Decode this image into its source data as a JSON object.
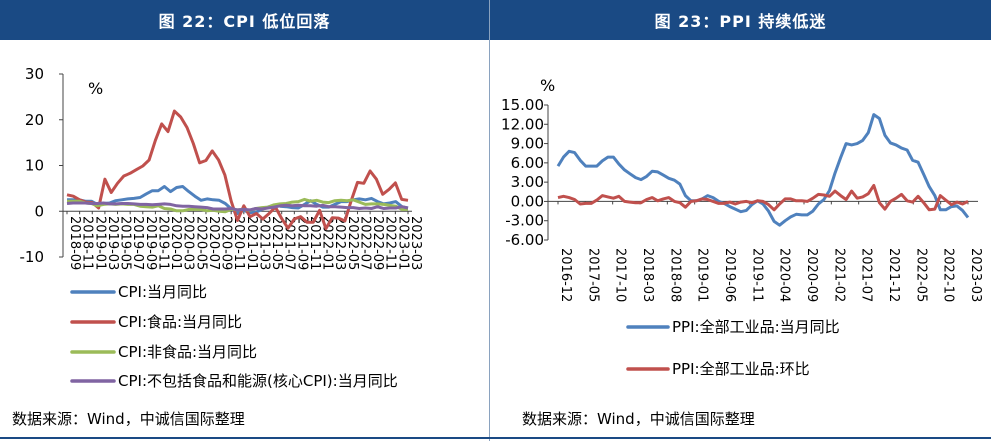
{
  "panels": {
    "left": {
      "title": "图 22：CPI 低位回落",
      "source": "数据来源：Wind，中诚信国际整理"
    },
    "right": {
      "title": "图 23：PPI 持续低迷",
      "source": "数据来源：Wind，中诚信国际整理"
    }
  },
  "colors": {
    "blue": "#4f81bd",
    "red": "#c0504d",
    "green": "#9bbb59",
    "purple": "#8064a2",
    "header": "#1a4a84"
  },
  "chart_data": [
    {
      "type": "line",
      "unit": "%",
      "ylim": [
        -10,
        30
      ],
      "yticks": [
        "30",
        "20",
        "10",
        "0",
        "-10"
      ],
      "x_tick_labels": [
        "2018-09",
        "2018-11",
        "2019-01",
        "2019-03",
        "2019-05",
        "2019-07",
        "2019-09",
        "2019-11",
        "2020-01",
        "2020-03",
        "2020-05",
        "2020-07",
        "2020-09",
        "2020-11",
        "2021-01",
        "2021-03",
        "2021-05",
        "2021-07",
        "2021-09",
        "2021-11",
        "2022-01",
        "2022-03",
        "2022-05",
        "2022-07",
        "2022-09",
        "2022-11",
        "2023-01",
        "2023-03"
      ],
      "legend_position": "bottom",
      "series": [
        {
          "name": "CPI:当月同比",
          "color": "#4f81bd",
          "values": [
            2.5,
            2.5,
            2.5,
            2.2,
            2.2,
            1.5,
            1.7,
            1.8,
            2.3,
            2.5,
            2.7,
            2.8,
            3.0,
            3.8,
            4.5,
            4.5,
            5.4,
            4.3,
            5.2,
            5.4,
            4.3,
            3.3,
            2.4,
            2.7,
            2.5,
            2.4,
            1.7,
            0.5,
            -0.5,
            0.2,
            -0.3,
            -0.2,
            0.4,
            0.9,
            1.3,
            1.1,
            1.0,
            0.8,
            0.7,
            1.5,
            2.3,
            1.5,
            0.9,
            0.9,
            1.5,
            2.1,
            2.1,
            2.5,
            2.7,
            2.5,
            2.8,
            2.1,
            1.6,
            1.8,
            2.1,
            1.0,
            0.7
          ]
        },
        {
          "name": "CPI:食品:当月同比",
          "color": "#c0504d",
          "values": [
            3.6,
            3.3,
            2.5,
            2.0,
            1.9,
            0.7,
            7.0,
            4.1,
            6.1,
            7.7,
            8.3,
            9.1,
            9.9,
            11.2,
            15.5,
            19.1,
            17.4,
            21.9,
            20.6,
            18.3,
            14.8,
            10.6,
            11.1,
            13.2,
            11.2,
            7.9,
            2.2,
            -2.0,
            1.2,
            -1.2,
            -0.5,
            -1.7,
            -0.5,
            0.9,
            -1.6,
            -3.7,
            -1.7,
            -1.2,
            -2.4,
            -2.4,
            0.2,
            -3.8,
            -1.4,
            -1.5,
            -2.1,
            2.3,
            6.3,
            6.1,
            8.8,
            7.0,
            3.7,
            4.8,
            6.2,
            2.6,
            2.4
          ]
        },
        {
          "name": "CPI:非食品:当月同比",
          "color": "#9bbb59",
          "values": [
            2.2,
            2.2,
            2.2,
            1.8,
            1.7,
            1.2,
            1.5,
            1.6,
            1.5,
            1.6,
            1.5,
            1.5,
            1.1,
            1.0,
            0.9,
            1.2,
            0.6,
            0.5,
            0.1,
            0.1,
            0.4,
            0.4,
            0.4,
            0.1,
            0.2,
            0.0,
            -0.1,
            0.4,
            0.3,
            0.4,
            0.2,
            0.6,
            0.8,
            0.9,
            1.4,
            1.6,
            1.7,
            2.0,
            2.1,
            2.6,
            2.2,
            2.4,
            2.0,
            1.9,
            2.3,
            2.4,
            2.3,
            2.5,
            2.0,
            1.5,
            1.6,
            1.6,
            1.5,
            1.3,
            1.1,
            0.4,
            0.4
          ]
        },
        {
          "name": "CPI:不包括食品和能源(核心CPI):当月同比",
          "color": "#8064a2",
          "values": [
            1.7,
            1.8,
            1.8,
            1.8,
            1.7,
            1.7,
            1.8,
            1.6,
            1.6,
            1.7,
            1.7,
            1.6,
            1.5,
            1.5,
            1.4,
            1.5,
            1.6,
            1.5,
            1.2,
            1.1,
            1.1,
            1.0,
            0.9,
            0.8,
            0.5,
            0.5,
            0.5,
            0.6,
            0.3,
            0.4,
            0.3,
            0.6,
            0.5,
            0.7,
            0.9,
            1.2,
            1.3,
            1.2,
            1.3,
            1.2,
            1.2,
            1.1,
            1.3,
            1.0,
            1.0,
            0.9,
            0.8,
            0.8,
            0.6,
            0.7,
            0.6,
            1.0,
            0.6,
            0.7,
            0.7,
            1.0,
            0.7
          ]
        }
      ]
    },
    {
      "type": "line",
      "unit": "%",
      "ylim": [
        -6,
        15
      ],
      "yticks": [
        "15.00",
        "12.00",
        "9.00",
        "6.00",
        "3.00",
        "0.00",
        "-3.00",
        "-6.00"
      ],
      "x_tick_labels": [
        "2016-12",
        "2017-05",
        "2017-10",
        "2018-03",
        "2018-08",
        "2019-01",
        "2019-06",
        "2019-11",
        "2020-04",
        "2020-09",
        "2021-02",
        "2021-07",
        "2021-12",
        "2022-05",
        "2022-10",
        "2023-03"
      ],
      "legend_position": "bottom",
      "series": [
        {
          "name": "PPI:全部工业品:当月同比",
          "color": "#4f81bd",
          "values": [
            5.5,
            6.9,
            7.8,
            7.6,
            6.4,
            5.5,
            5.5,
            5.5,
            6.3,
            6.9,
            6.9,
            5.8,
            4.9,
            4.3,
            3.7,
            3.4,
            3.9,
            4.7,
            4.6,
            4.1,
            3.6,
            3.3,
            2.7,
            0.9,
            0.1,
            0.1,
            0.4,
            0.9,
            0.6,
            0.0,
            -0.3,
            -0.8,
            -1.2,
            -1.6,
            -1.4,
            -0.5,
            0.1,
            -0.4,
            -1.5,
            -3.1,
            -3.7,
            -3.0,
            -2.4,
            -2.0,
            -2.1,
            -2.1,
            -1.5,
            -0.4,
            0.3,
            1.7,
            4.4,
            6.8,
            9.0,
            8.8,
            9.0,
            9.5,
            10.7,
            13.5,
            12.9,
            10.3,
            9.1,
            8.8,
            8.3,
            8.0,
            6.4,
            6.1,
            4.2,
            2.3,
            0.9,
            -1.3,
            -1.3,
            -0.8,
            -0.7,
            -1.4,
            -2.5
          ]
        },
        {
          "name": "PPI:全部工业品:环比",
          "color": "#c0504d",
          "values": [
            0.6,
            0.8,
            0.6,
            0.3,
            -0.4,
            -0.3,
            -0.3,
            0.2,
            0.9,
            0.7,
            0.5,
            0.8,
            0.0,
            -0.1,
            -0.2,
            -0.2,
            0.3,
            0.6,
            0.1,
            0.4,
            0.6,
            0.0,
            -0.2,
            -0.9,
            0.0,
            0.1,
            0.4,
            0.3,
            0.0,
            -0.3,
            -0.3,
            -0.1,
            -0.4,
            -0.1,
            0.0,
            -0.2,
            0.1,
            0.0,
            -0.5,
            -1.3,
            -0.4,
            0.4,
            0.4,
            0.1,
            0.1,
            0.0,
            0.5,
            1.1,
            1.0,
            0.8,
            1.6,
            0.9,
            0.3,
            1.6,
            0.5,
            0.7,
            1.2,
            2.5,
            -0.2,
            -1.2,
            0.0,
            0.5,
            1.1,
            0.1,
            -0.1,
            0.8,
            -0.2,
            -1.3,
            -1.2,
            0.9,
            0.2,
            -0.5,
            -0.1,
            -0.4,
            0.0
          ]
        }
      ]
    }
  ]
}
